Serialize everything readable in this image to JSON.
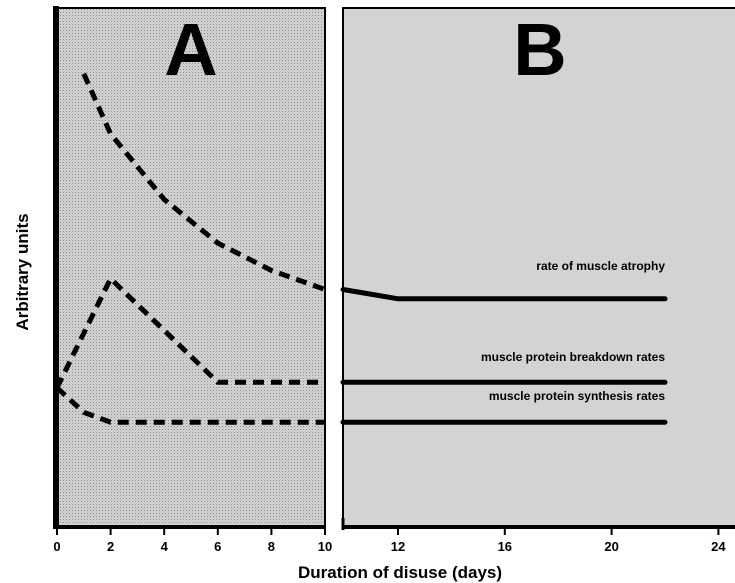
{
  "chart_data": {
    "type": "line",
    "panels": [
      {
        "label": "A",
        "x_range": [
          0,
          10
        ]
      },
      {
        "label": "B",
        "x_range": [
          10,
          24
        ]
      }
    ],
    "xlabel": "Duration of disuse (days)",
    "ylabel": "Arbitrary units",
    "xticks": [
      0,
      2,
      4,
      6,
      8,
      10,
      12,
      16,
      20,
      24
    ],
    "series": [
      {
        "name": "rate of muscle atrophy",
        "panel_a": {
          "x": [
            1,
            2,
            4,
            6,
            8,
            10
          ],
          "y": [
            8.3,
            7.2,
            6.0,
            5.2,
            4.7,
            4.35
          ]
        },
        "panel_b": {
          "x": [
            10,
            12,
            16,
            20,
            22
          ],
          "y": [
            4.35,
            4.18,
            4.18,
            4.18,
            4.18
          ]
        }
      },
      {
        "name": "muscle protein breakdown rates",
        "panel_a": {
          "x": [
            0,
            2,
            6,
            8,
            10
          ],
          "y": [
            2.55,
            4.55,
            2.65,
            2.65,
            2.65
          ]
        },
        "panel_b": {
          "x": [
            10,
            12,
            16,
            20,
            22
          ],
          "y": [
            2.65,
            2.65,
            2.65,
            2.65,
            2.65
          ]
        }
      },
      {
        "name": "muscle protein synthesis rates",
        "panel_a": {
          "x": [
            0,
            1,
            2,
            4,
            6,
            8,
            10
          ],
          "y": [
            2.55,
            2.1,
            1.92,
            1.92,
            1.92,
            1.92,
            1.92
          ]
        },
        "panel_b": {
          "x": [
            10,
            12,
            16,
            20,
            22
          ],
          "y": [
            1.92,
            1.92,
            1.92,
            1.92,
            1.92
          ]
        }
      }
    ]
  }
}
